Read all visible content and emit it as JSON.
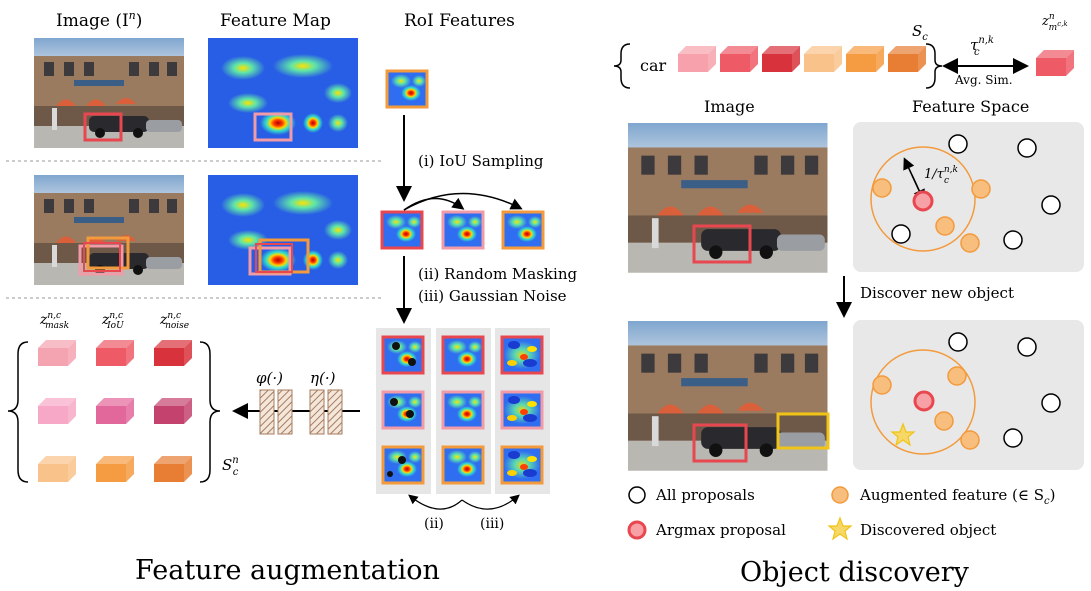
{
  "feature_augmentation": {
    "col_image": "Image (I",
    "col_image_sup": "n",
    "col_image_close": ")",
    "col_feature_map": "Feature Map",
    "col_roi": "RoI Features",
    "step_i": "(i)  IoU Sampling",
    "step_ii": "(ii)   Random Masking",
    "step_iii": "(iii)  Gaussian Noise",
    "z_mask": "z",
    "z_mask_sub": "mask",
    "z_iou_sub": "IoU",
    "z_noise_sub": "noise",
    "z_sup": "n,c",
    "phi": "φ(·)",
    "eta": "η(·)",
    "set_label": "S",
    "set_sub": "c",
    "set_sup": "n",
    "arc_ii": "(ii)",
    "arc_iii": "(iii)",
    "caption": "Feature augmentation"
  },
  "object_discovery": {
    "set_car": "car",
    "set_name": "S",
    "set_name_sub": "c",
    "tau": "τ",
    "tau_sup": "n,k",
    "tau_sub": "c",
    "avg_sim": "Avg. Sim.",
    "z_top": "z",
    "z_top_sup": "n",
    "z_top_sub": "m",
    "z_top_subsup": "c,k",
    "z_top_subsub": "c",
    "col_image": "Image",
    "col_feature_space": "Feature Space",
    "radius_label": "1/τ",
    "radius_sup": "n,k",
    "radius_sub": "c",
    "discover": "Discover new object",
    "legend": {
      "all_proposals": "All proposals",
      "argmax": "Argmax proposal",
      "augmented": "Augmented feature (∈ S",
      "augmented_sub": "c",
      "augmented_close": ")",
      "discovered": "Discovered object"
    },
    "caption": "Object discovery"
  },
  "colors": {
    "red": "#e8474f",
    "pink": "#f19aa8",
    "orange": "#f39a3c",
    "light_orange": "#f7be7e",
    "yellow": "#f0c417",
    "gray_panel": "#e8e8e8"
  }
}
